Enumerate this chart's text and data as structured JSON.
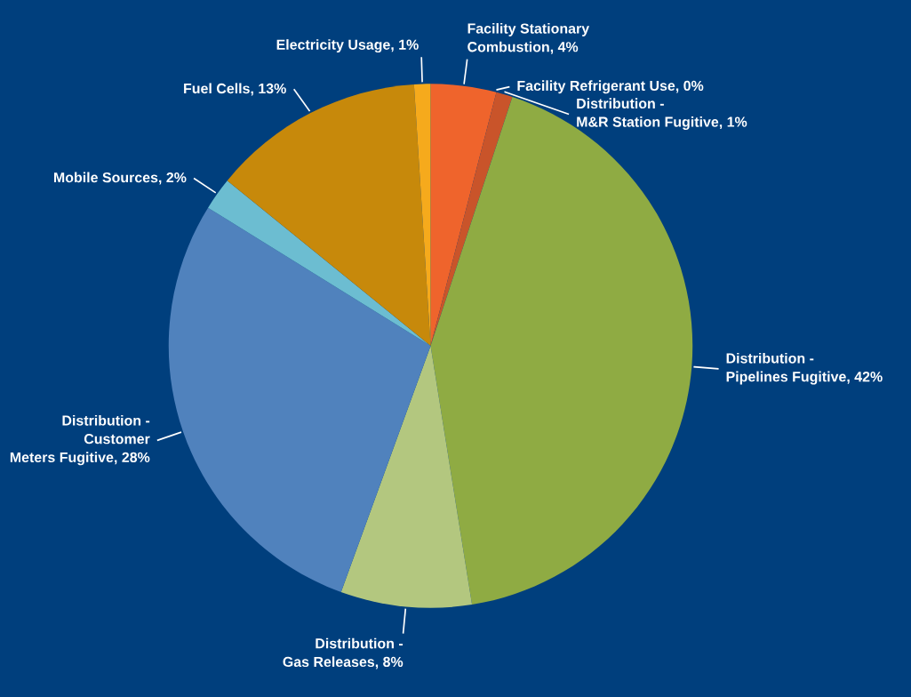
{
  "chart_data": {
    "type": "pie",
    "categories": [
      "Facility Stationary\nCombustion, 4%",
      "Facility Refrigerant Use, 0%",
      "Distribution -\nM&R Station Fugitive, 1%",
      "Distribution -\nPipelines Fugitive, 42%",
      "Distribution -\nGas Releases, 8%",
      "Distribution -\nCustomer\nMeters Fugitive, 28%",
      "Mobile Sources, 2%",
      "Fuel Cells, 13%",
      "Electricity Usage, 1%"
    ],
    "values": [
      4,
      0,
      1,
      42,
      8,
      28,
      2,
      13,
      1
    ],
    "colors": [
      "#ef642c",
      "#e8602a",
      "#c9542a",
      "#8fab43",
      "#b3c77f",
      "#5082bd",
      "#6cbdd1",
      "#c7890b",
      "#f6aa1c"
    ]
  }
}
